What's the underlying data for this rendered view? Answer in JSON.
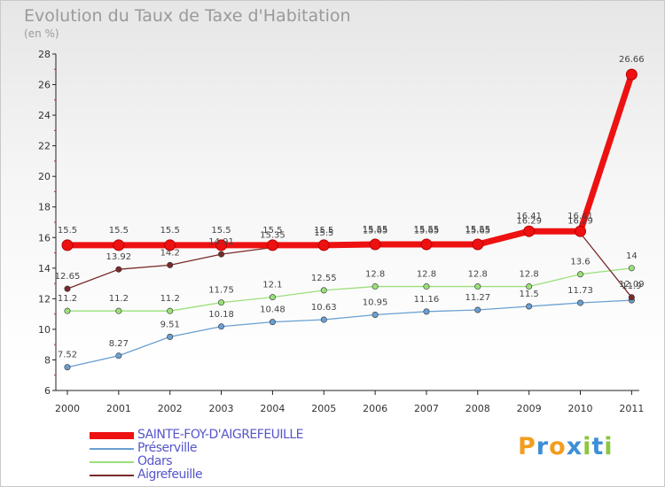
{
  "title": "Evolution du Taux de Taxe d'Habitation",
  "subtitle": "(en %)",
  "logo": {
    "letters": [
      "P",
      "r",
      "o",
      "x",
      "i",
      "t",
      "i"
    ],
    "colors": [
      "#f29d1f",
      "#3d8fd6",
      "#f29d1f",
      "#3d8fd6",
      "#8cc63f",
      "#3d8fd6",
      "#8cc63f"
    ]
  },
  "chart_data": {
    "type": "line",
    "title": "Evolution du Taux de Taxe d'Habitation",
    "subtitle": "(en %)",
    "xlabel": "",
    "ylabel": "",
    "x": [
      "2000",
      "2001",
      "2002",
      "2003",
      "2004",
      "2005",
      "2006",
      "2007",
      "2008",
      "2009",
      "2010",
      "2011"
    ],
    "ylim": [
      6,
      28
    ],
    "yticks": [
      "6",
      "8",
      "10",
      "12",
      "14",
      "16",
      "18",
      "20",
      "22",
      "24",
      "26",
      "28"
    ],
    "grid": false,
    "legend_position": "bottom-left",
    "series": [
      {
        "name": "SAINTE-FOY-D'AIGREFEUILLE",
        "color": "#ee1111",
        "values": [
          15.5,
          15.5,
          15.5,
          15.5,
          15.5,
          15.5,
          15.55,
          15.55,
          15.55,
          16.41,
          16.41,
          26.66
        ],
        "labels": [
          "15.5",
          "15.5",
          "15.5",
          "15.5",
          "15.5",
          "15.5",
          "15.55",
          "15.55",
          "15.55",
          "16.41",
          "16.41",
          "26.66"
        ]
      },
      {
        "name": "Préserville",
        "color": "#6a9fd2",
        "values": [
          7.52,
          8.27,
          9.51,
          10.18,
          10.48,
          10.63,
          10.95,
          11.16,
          11.27,
          11.5,
          11.73,
          11.9
        ],
        "labels": [
          "7.52",
          "8.27",
          "9.51",
          "10.18",
          "10.48",
          "10.63",
          "10.95",
          "11.16",
          "11.27",
          "11.5",
          "11.73",
          "11.9"
        ]
      },
      {
        "name": "Odars",
        "color": "#9be07a",
        "values": [
          11.2,
          11.2,
          11.2,
          11.75,
          12.1,
          12.55,
          12.8,
          12.8,
          12.8,
          12.8,
          13.6,
          14
        ],
        "labels": [
          "11.2",
          "11.2",
          "11.2",
          "11.75",
          "12.1",
          "12.55",
          "12.8",
          "12.8",
          "12.8",
          "12.8",
          "13.6",
          "14"
        ]
      },
      {
        "name": "Aigrefeuille",
        "color": "#7a2a2a",
        "values": [
          12.65,
          13.92,
          14.2,
          14.91,
          15.35,
          15.5,
          15.65,
          15.65,
          15.65,
          16.29,
          16.29,
          12.09
        ],
        "labels": [
          "12.65",
          "13.92",
          "14.2",
          "14.91",
          "15.35",
          "15.5",
          "15.65",
          "15.65",
          "15.65",
          "16.29",
          "16.29",
          "12.09"
        ]
      }
    ]
  }
}
